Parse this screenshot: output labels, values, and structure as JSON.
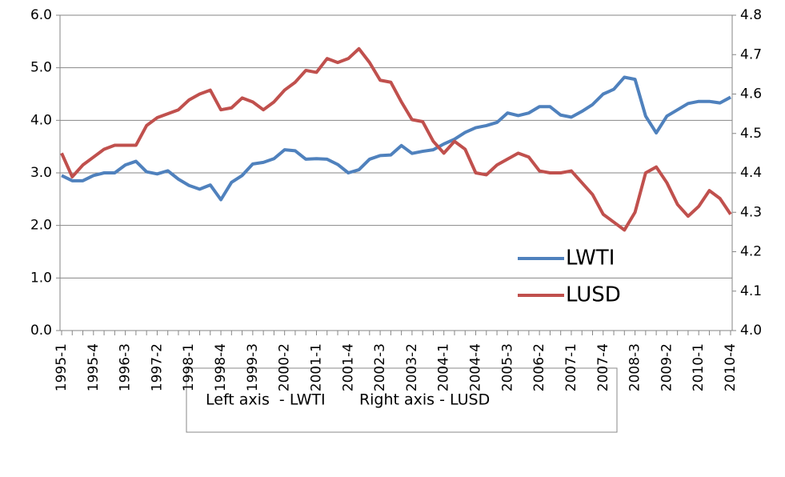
{
  "chart_data": {
    "type": "line",
    "categories": [
      "1995-1",
      null,
      null,
      "1995-4",
      null,
      null,
      "1996-3",
      null,
      null,
      "1997-2",
      null,
      null,
      "1998-1",
      null,
      null,
      "1998-4",
      null,
      null,
      "1999-3",
      null,
      null,
      "2000-2",
      null,
      null,
      "2001-1",
      null,
      null,
      "2001-4",
      null,
      null,
      "2002-3",
      null,
      null,
      "2003-2",
      null,
      null,
      "2004-1",
      null,
      null,
      "2004-4",
      null,
      null,
      "2005-3",
      null,
      null,
      "2006-2",
      null,
      null,
      "2007-1",
      null,
      null,
      "2007-4",
      null,
      null,
      "2008-3",
      null,
      null,
      "2009-2",
      null,
      null,
      "2010-1",
      null,
      null,
      "2010-4"
    ],
    "series": [
      {
        "name": "LWTI",
        "color": "#4f81bd",
        "values": [
          2.95,
          2.85,
          2.85,
          2.95,
          3.0,
          3.0,
          3.15,
          3.22,
          3.02,
          2.98,
          3.04,
          2.88,
          2.76,
          2.69,
          2.77,
          2.49,
          2.82,
          2.95,
          3.17,
          3.2,
          3.27,
          3.44,
          3.42,
          3.26,
          3.27,
          3.26,
          3.16,
          3.0,
          3.06,
          3.26,
          3.33,
          3.34,
          3.52,
          3.37,
          3.41,
          3.44,
          3.55,
          3.64,
          3.77,
          3.86,
          3.9,
          3.96,
          4.14,
          4.09,
          4.14,
          4.26,
          4.26,
          4.1,
          4.06,
          4.17,
          4.3,
          4.5,
          4.59,
          4.82,
          4.78,
          4.08,
          3.76,
          4.08,
          4.2,
          4.32,
          4.36,
          4.36,
          4.33,
          4.44
        ]
      },
      {
        "name": "LUSD",
        "color": "#c0504d",
        "axis": "y2",
        "values": [
          4.45,
          4.39,
          4.42,
          4.44,
          4.46,
          4.47,
          4.47,
          4.47,
          4.52,
          4.54,
          4.55,
          4.56,
          4.585,
          4.6,
          4.61,
          4.56,
          4.565,
          4.59,
          4.58,
          4.56,
          4.58,
          4.61,
          4.63,
          4.66,
          4.655,
          4.69,
          4.68,
          4.69,
          4.715,
          4.68,
          4.635,
          4.63,
          4.58,
          4.535,
          4.53,
          4.48,
          4.45,
          4.48,
          4.46,
          4.4,
          4.395,
          4.42,
          4.435,
          4.45,
          4.44,
          4.405,
          4.4,
          4.4,
          4.405,
          4.375,
          4.345,
          4.295,
          4.275,
          4.255,
          4.3,
          4.4,
          4.415,
          4.375,
          4.32,
          4.29,
          4.315,
          4.355,
          4.335,
          4.295
        ]
      }
    ],
    "ylim": [
      0,
      6
    ],
    "yticks": [
      {
        "value": 0,
        "label": "0.0"
      },
      {
        "value": 1,
        "label": "1.0"
      },
      {
        "value": 2,
        "label": "2.0"
      },
      {
        "value": 3,
        "label": "3.0"
      },
      {
        "value": 4,
        "label": "4.0"
      },
      {
        "value": 5,
        "label": "5.0"
      },
      {
        "value": 6,
        "label": "6.0"
      }
    ],
    "y2lim": [
      4.0,
      4.8
    ],
    "y2ticks": [
      {
        "value": 4,
        "label": "4.0"
      },
      4.1,
      4.2,
      4.3,
      4.4,
      4.5,
      4.6,
      4.7,
      4.8
    ],
    "grid": true,
    "legend": "lower-right",
    "annotation": "Left axis  - LWTI       Right axis - LUSD"
  }
}
